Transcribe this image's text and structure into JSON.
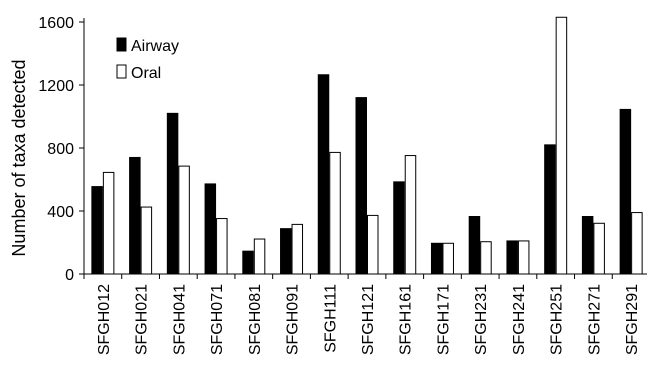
{
  "chart_data": {
    "type": "bar",
    "title": "",
    "xlabel": "",
    "ylabel": "Number of taxa detected",
    "ylim": [
      0,
      1600
    ],
    "yticks": [
      0,
      400,
      800,
      1200,
      1600
    ],
    "grid": false,
    "legend_position": "top-left",
    "categories": [
      "SFGH012",
      "SFGH021",
      "SFGH041",
      "SFGH071",
      "SFGH081",
      "SFGH091",
      "SFGH111",
      "SFGH121",
      "SFGH161",
      "SFGH171",
      "SFGH231",
      "SFGH241",
      "SFGH251",
      "SFGH271",
      "SFGH291"
    ],
    "series": [
      {
        "name": "Airway",
        "color": "#000000",
        "values": [
          555,
          740,
          1020,
          572,
          145,
          288,
          1265,
          1120,
          585,
          195,
          365,
          210,
          820,
          365,
          1045
        ]
      },
      {
        "name": "Oral",
        "color": "#ffffff",
        "values": [
          645,
          425,
          685,
          352,
          222,
          315,
          772,
          372,
          752,
          195,
          205,
          210,
          1630,
          322,
          390
        ]
      }
    ]
  }
}
